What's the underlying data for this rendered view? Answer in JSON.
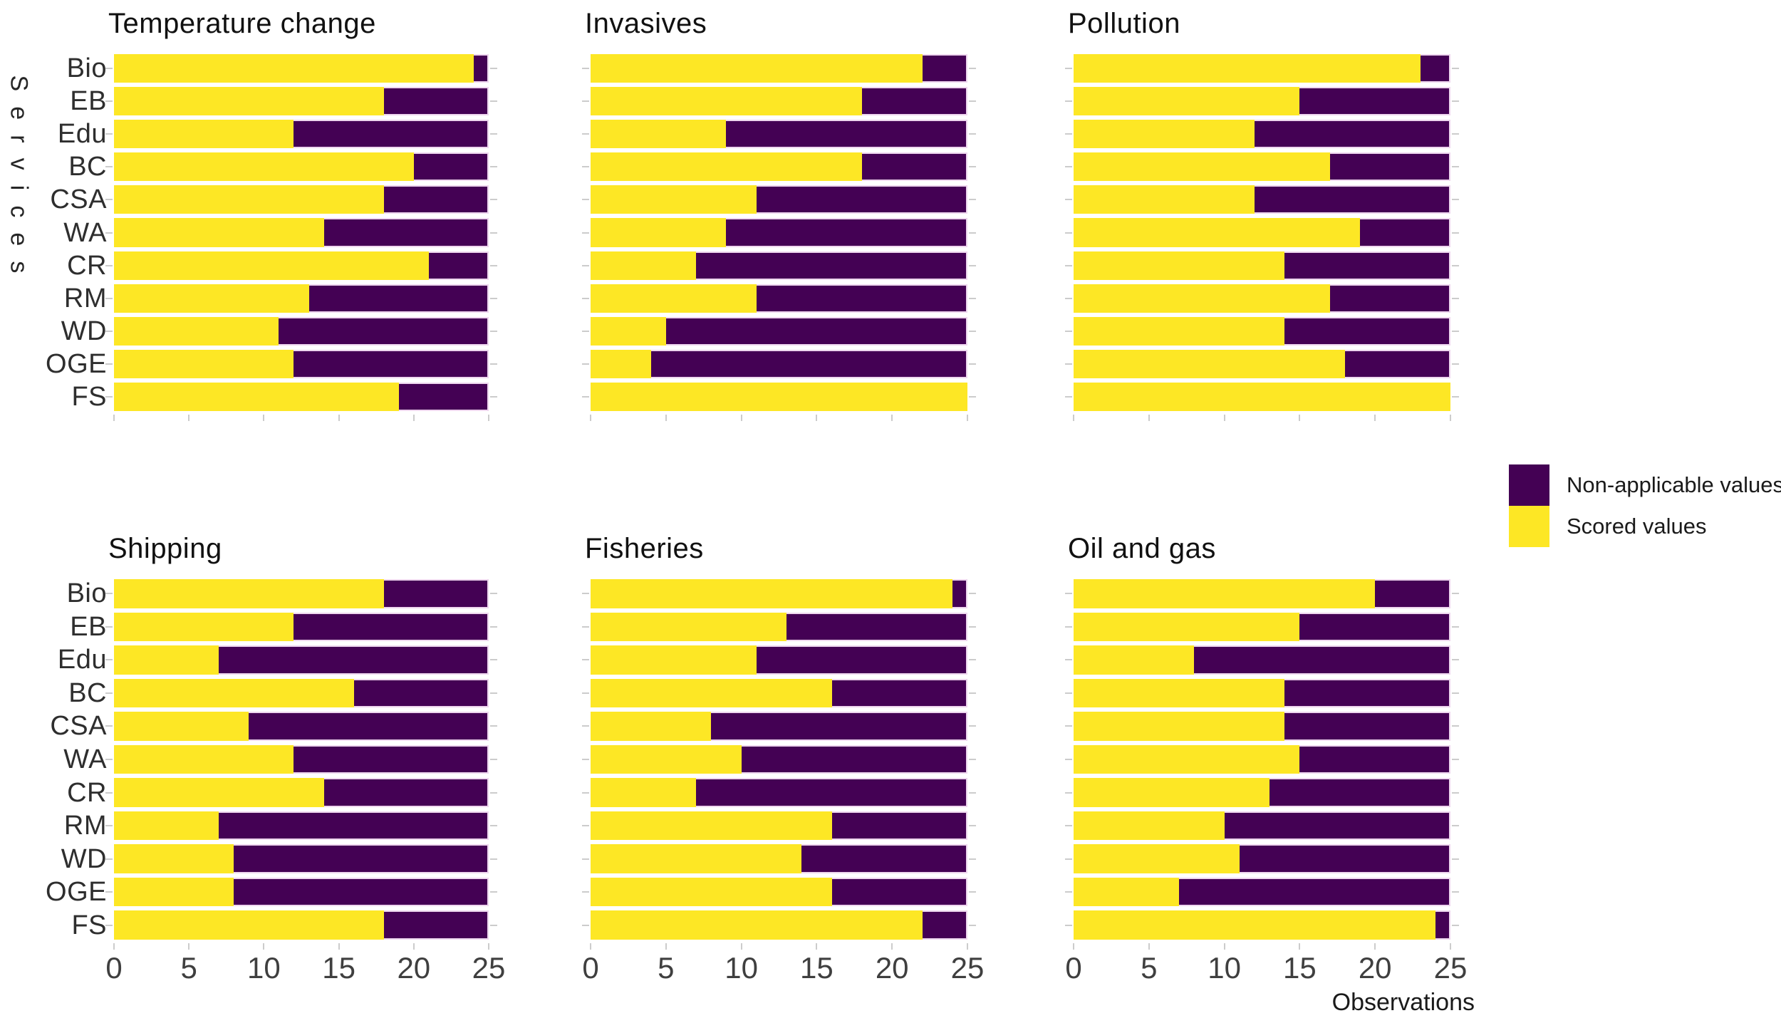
{
  "figure": {
    "y_axis_title": "Services",
    "x_axis_title": "Observations",
    "categories": [
      "Bio",
      "EB",
      "Edu",
      "BC",
      "CSA",
      "WA",
      "CR",
      "RM",
      "WD",
      "OGE",
      "FS"
    ],
    "x_ticks": [
      "0",
      "5",
      "10",
      "15",
      "20",
      "25"
    ]
  },
  "legend": {
    "items": [
      {
        "label": "Non-applicable values",
        "color": "#440154"
      },
      {
        "label": "Scored values",
        "color": "#FDE725"
      }
    ]
  },
  "colors": {
    "scored": "#FDE725",
    "non_applicable": "#440154",
    "background": "#ffffff"
  },
  "chart_data": [
    {
      "type": "bar",
      "orientation": "horizontal",
      "stacked": true,
      "title": "Temperature change",
      "xlabel": "Observations",
      "ylabel": "Services",
      "xlim": [
        0,
        25
      ],
      "categories": [
        "Bio",
        "EB",
        "Edu",
        "BC",
        "CSA",
        "WA",
        "CR",
        "RM",
        "WD",
        "OGE",
        "FS"
      ],
      "series": [
        {
          "name": "Scored values",
          "color": "#FDE725",
          "values": [
            24,
            18,
            12,
            20,
            18,
            14,
            21,
            13,
            11,
            12,
            19
          ]
        },
        {
          "name": "Non-applicable values",
          "color": "#440154",
          "values": [
            1,
            7,
            13,
            5,
            7,
            11,
            4,
            12,
            14,
            13,
            6
          ]
        }
      ]
    },
    {
      "type": "bar",
      "orientation": "horizontal",
      "stacked": true,
      "title": "Invasives",
      "xlabel": "Observations",
      "ylabel": "Services",
      "xlim": [
        0,
        25
      ],
      "categories": [
        "Bio",
        "EB",
        "Edu",
        "BC",
        "CSA",
        "WA",
        "CR",
        "RM",
        "WD",
        "OGE",
        "FS"
      ],
      "series": [
        {
          "name": "Scored values",
          "color": "#FDE725",
          "values": [
            22,
            18,
            9,
            18,
            11,
            9,
            7,
            11,
            5,
            4,
            25
          ]
        },
        {
          "name": "Non-applicable values",
          "color": "#440154",
          "values": [
            3,
            7,
            16,
            7,
            14,
            16,
            18,
            14,
            20,
            21,
            0
          ]
        }
      ]
    },
    {
      "type": "bar",
      "orientation": "horizontal",
      "stacked": true,
      "title": "Pollution",
      "xlabel": "Observations",
      "ylabel": "Services",
      "xlim": [
        0,
        25
      ],
      "categories": [
        "Bio",
        "EB",
        "Edu",
        "BC",
        "CSA",
        "WA",
        "CR",
        "RM",
        "WD",
        "OGE",
        "FS"
      ],
      "series": [
        {
          "name": "Scored values",
          "color": "#FDE725",
          "values": [
            23,
            15,
            12,
            17,
            12,
            19,
            14,
            17,
            14,
            18,
            25
          ]
        },
        {
          "name": "Non-applicable values",
          "color": "#440154",
          "values": [
            2,
            10,
            13,
            8,
            13,
            6,
            11,
            8,
            11,
            7,
            0
          ]
        }
      ]
    },
    {
      "type": "bar",
      "orientation": "horizontal",
      "stacked": true,
      "title": "Shipping",
      "xlabel": "Observations",
      "ylabel": "Services",
      "xlim": [
        0,
        25
      ],
      "categories": [
        "Bio",
        "EB",
        "Edu",
        "BC",
        "CSA",
        "WA",
        "CR",
        "RM",
        "WD",
        "OGE",
        "FS"
      ],
      "series": [
        {
          "name": "Scored values",
          "color": "#FDE725",
          "values": [
            18,
            12,
            7,
            16,
            9,
            12,
            14,
            7,
            8,
            8,
            18
          ]
        },
        {
          "name": "Non-applicable values",
          "color": "#440154",
          "values": [
            7,
            13,
            18,
            9,
            16,
            13,
            11,
            18,
            17,
            17,
            7
          ]
        }
      ]
    },
    {
      "type": "bar",
      "orientation": "horizontal",
      "stacked": true,
      "title": "Fisheries",
      "xlabel": "Observations",
      "ylabel": "Services",
      "xlim": [
        0,
        25
      ],
      "categories": [
        "Bio",
        "EB",
        "Edu",
        "BC",
        "CSA",
        "WA",
        "CR",
        "RM",
        "WD",
        "OGE",
        "FS"
      ],
      "series": [
        {
          "name": "Scored values",
          "color": "#FDE725",
          "values": [
            24,
            13,
            11,
            16,
            8,
            10,
            7,
            16,
            14,
            16,
            22
          ]
        },
        {
          "name": "Non-applicable values",
          "color": "#440154",
          "values": [
            1,
            12,
            14,
            9,
            17,
            15,
            18,
            9,
            11,
            9,
            3
          ]
        }
      ]
    },
    {
      "type": "bar",
      "orientation": "horizontal",
      "stacked": true,
      "title": "Oil and gas",
      "xlabel": "Observations",
      "ylabel": "Services",
      "xlim": [
        0,
        25
      ],
      "categories": [
        "Bio",
        "EB",
        "Edu",
        "BC",
        "CSA",
        "WA",
        "CR",
        "RM",
        "WD",
        "OGE",
        "FS"
      ],
      "series": [
        {
          "name": "Scored values",
          "color": "#FDE725",
          "values": [
            20,
            15,
            8,
            14,
            14,
            15,
            13,
            10,
            11,
            7,
            24
          ]
        },
        {
          "name": "Non-applicable values",
          "color": "#440154",
          "values": [
            5,
            10,
            17,
            11,
            11,
            10,
            12,
            15,
            14,
            18,
            1
          ]
        }
      ]
    }
  ]
}
